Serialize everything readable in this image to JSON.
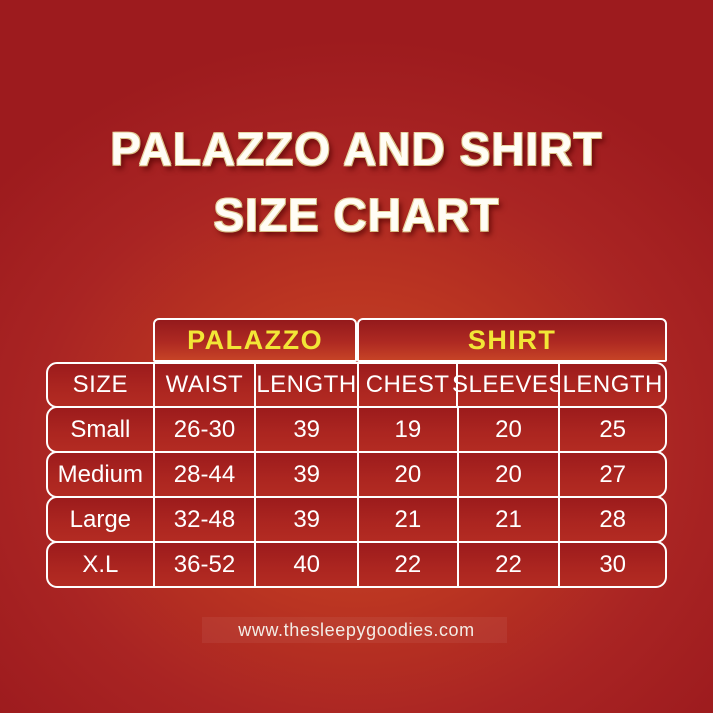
{
  "title": {
    "line1": "PALAZZO AND SHIRT",
    "line2": "SIZE CHART"
  },
  "footer": {
    "website": "www.thesleepygoodies.com"
  },
  "colors": {
    "background_center": "#c84b2b",
    "background_edge": "#9d1b1e",
    "cell_red_top": "#9c1b1c",
    "cell_red_bottom": "#b32b22",
    "group_header_orange": "#c64326",
    "group_label_yellow": "#f2e636",
    "title_cream": "#fffdf5",
    "title_rim_gold": "#d9be83",
    "border_white": "#ffffff",
    "text_white": "#ffffff"
  },
  "chart_data": {
    "type": "table",
    "title": "PALAZZO AND SHIRT SIZE CHART",
    "column_groups": [
      {
        "label": "PALAZZO",
        "span": 2
      },
      {
        "label": "SHIRT",
        "span": 3
      }
    ],
    "columns": [
      "SIZE",
      "WAIST",
      "LENGTH",
      "CHEST",
      "SLEEVES",
      "LENGTH"
    ],
    "rows": [
      [
        "Small",
        "26-30",
        "39",
        "19",
        "20",
        "25"
      ],
      [
        "Medium",
        "28-44",
        "39",
        "20",
        "20",
        "27"
      ],
      [
        "Large",
        "32-48",
        "39",
        "21",
        "21",
        "28"
      ],
      [
        "X.L",
        "36-52",
        "40",
        "22",
        "22",
        "30"
      ]
    ]
  }
}
